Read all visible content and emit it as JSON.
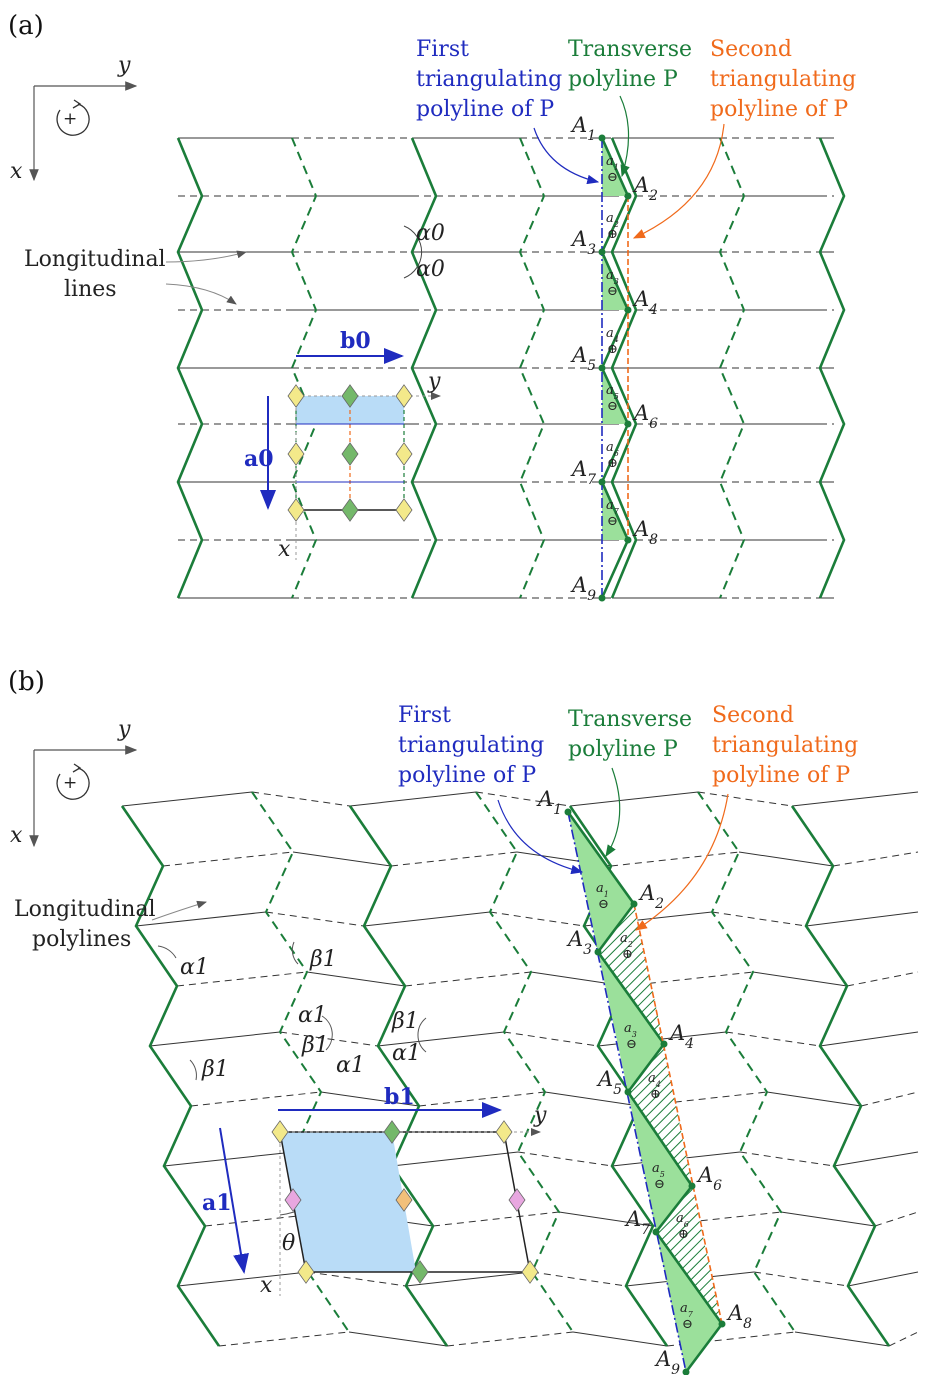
{
  "panel_a": {
    "label": "(a)",
    "axes": {
      "y": "y",
      "x": "x",
      "rotation": "+"
    },
    "first_triangulating": [
      "First",
      "triangulating",
      "polyline of P"
    ],
    "transverse": [
      "Transverse",
      "polyline P"
    ],
    "second_triangulating": [
      "Second",
      "triangulating",
      "polyline of P"
    ],
    "longitudinal": [
      "Longitudinal",
      "lines"
    ],
    "alpha_top": "α0",
    "alpha_bottom": "α0",
    "b_vector": "b0",
    "a_vector": "a0",
    "cell_y": "y",
    "cell_x": "x",
    "vertices": [
      "A1",
      "A2",
      "A3",
      "A4",
      "A5",
      "A6",
      "A7",
      "A8",
      "A9"
    ],
    "triangles": [
      "a1",
      "a2",
      "a3",
      "a4",
      "a5",
      "a6",
      "a7"
    ],
    "signs": [
      "⊖",
      "⊕",
      "⊖",
      "⊕",
      "⊖",
      "⊕",
      "⊖"
    ]
  },
  "panel_b": {
    "label": "(b)",
    "axes": {
      "y": "y",
      "x": "x",
      "rotation": "+"
    },
    "first_triangulating": [
      "First",
      "triangulating",
      "polyline of P"
    ],
    "transverse": [
      "Transverse",
      "polyline P"
    ],
    "second_triangulating": [
      "Second",
      "triangulating",
      "polyline of P"
    ],
    "longitudinal": [
      "Longitudinal",
      "polylines"
    ],
    "alpha": "α1",
    "beta": "β1",
    "theta": "θ",
    "b_vector": "b1",
    "a_vector": "a1",
    "cell_y": "y",
    "cell_x": "x",
    "vertices": [
      "A1",
      "A2",
      "A3",
      "A4",
      "A5",
      "A6",
      "A7",
      "A8",
      "A9"
    ],
    "triangles": [
      "a1",
      "a2",
      "a3",
      "a4",
      "a5",
      "a6",
      "a7"
    ],
    "signs": [
      "⊖",
      "⊕",
      "⊖",
      "⊕",
      "⊖",
      "⊕",
      "⊖"
    ]
  },
  "colors": {
    "crease_green": "#1b7d3a",
    "first_polyline_blue": "#1f2bbf",
    "second_polyline_orange": "#f06a1b",
    "triangle_fill": "#9be09b",
    "cell_fill": "#b9dcf7",
    "diamond_yellow": "#f3e98a",
    "diamond_green": "#74b86a",
    "diamond_pink": "#e8a7e0",
    "diamond_orange": "#f2c07a"
  }
}
